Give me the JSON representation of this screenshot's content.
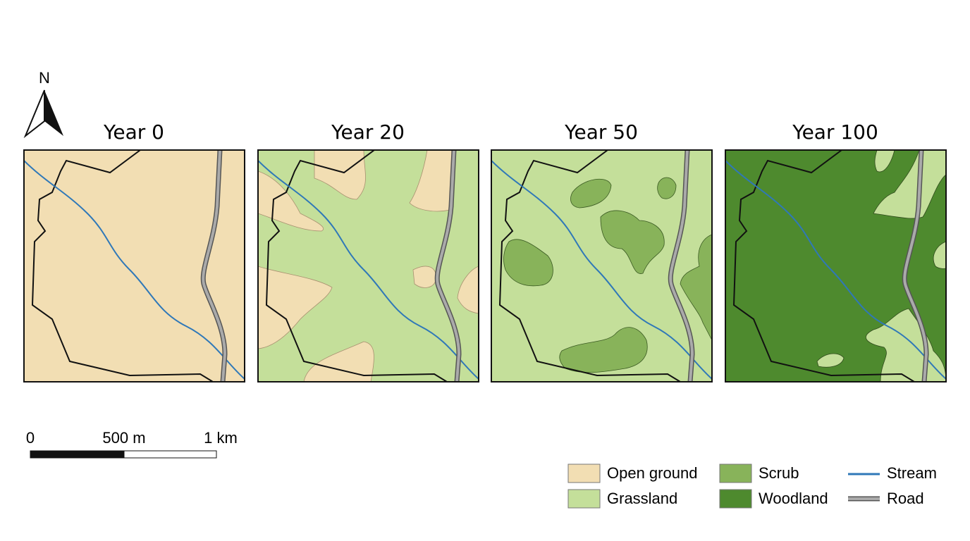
{
  "north_arrow": {
    "label": "N"
  },
  "panels": [
    {
      "title": "Year 0"
    },
    {
      "title": "Year 20"
    },
    {
      "title": "Year 50"
    },
    {
      "title": "Year 100"
    }
  ],
  "scale_bar": {
    "labels": [
      "0",
      "500 m",
      "1 km"
    ]
  },
  "legend": {
    "items": [
      {
        "label": "Open ground"
      },
      {
        "label": "Grassland"
      },
      {
        "label": "Scrub"
      },
      {
        "label": "Woodland"
      },
      {
        "label": "Stream"
      },
      {
        "label": "Road"
      }
    ]
  }
}
